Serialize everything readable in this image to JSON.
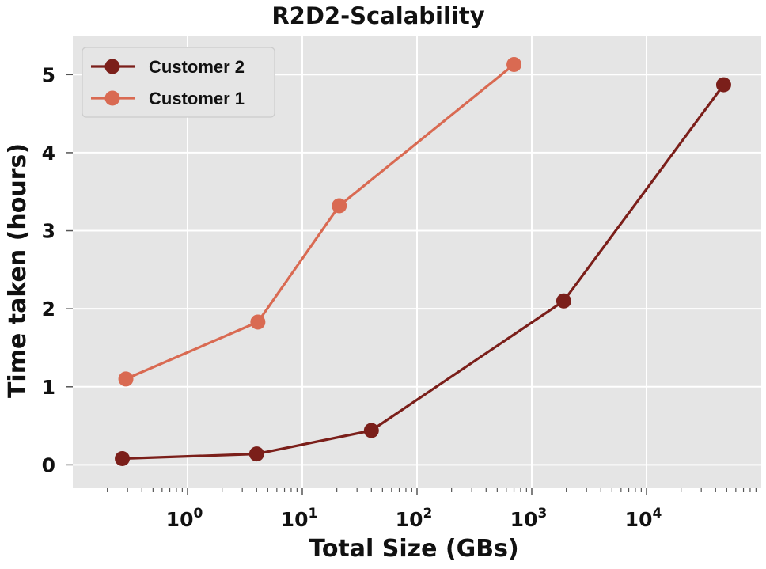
{
  "chart_data": {
    "type": "line",
    "title": "R2D2-Scalability",
    "xlabel": "Total Size (GBs)",
    "ylabel": "Time taken (hours)",
    "xscale": "log",
    "xlim": [
      0.1,
      100000
    ],
    "ylim": [
      -0.3,
      5.5
    ],
    "x_ticks": [
      1,
      10,
      100,
      1000,
      10000
    ],
    "x_tick_labels": [
      {
        "base": "10",
        "exp": "0"
      },
      {
        "base": "10",
        "exp": "1"
      },
      {
        "base": "10",
        "exp": "2"
      },
      {
        "base": "10",
        "exp": "3"
      },
      {
        "base": "10",
        "exp": "4"
      }
    ],
    "y_ticks": [
      0,
      1,
      2,
      3,
      4,
      5
    ],
    "y_tick_labels": [
      "0",
      "1",
      "2",
      "3",
      "4",
      "5"
    ],
    "grid": true,
    "legend_position": "top-left",
    "series": [
      {
        "name": "Customer 2",
        "color": "#7b1f1a",
        "x": [
          0.27,
          4,
          40,
          1900,
          47000
        ],
        "y": [
          0.08,
          0.14,
          0.44,
          2.1,
          4.87
        ]
      },
      {
        "name": "Customer 1",
        "color": "#d96a52",
        "x": [
          0.29,
          4.1,
          21,
          700
        ],
        "y": [
          1.1,
          1.83,
          3.32,
          5.13
        ]
      }
    ],
    "colors": {
      "plot_background": "#e5e5e5",
      "grid": "#ffffff",
      "minor_tick": "#555555"
    }
  }
}
